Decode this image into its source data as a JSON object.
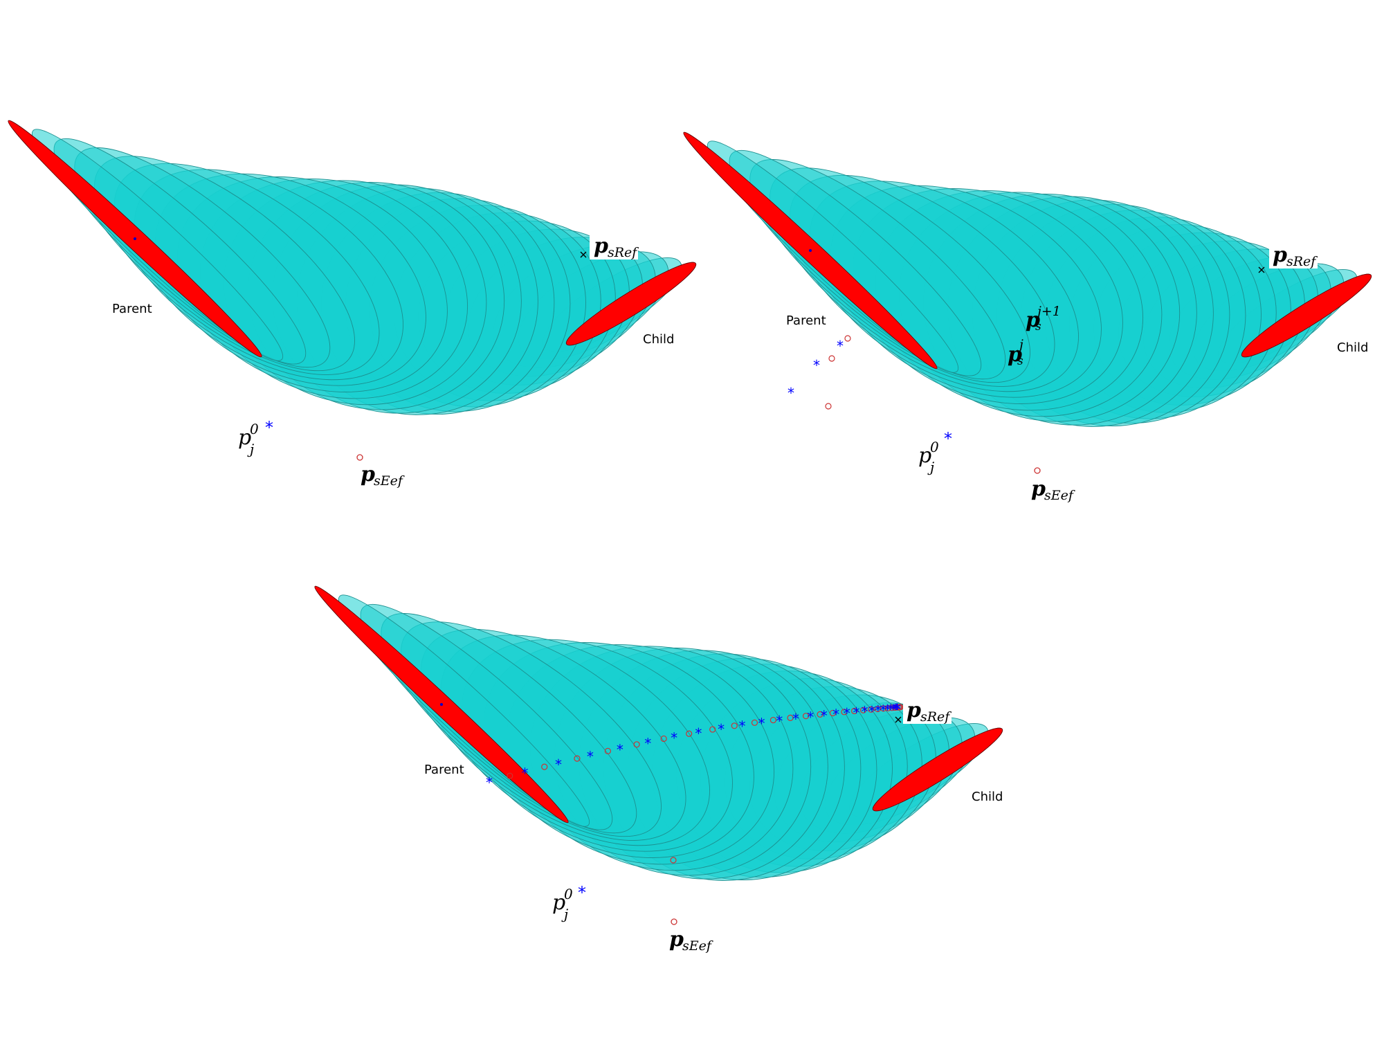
{
  "figure": {
    "panels": [
      {
        "id": "panel-a",
        "labels": {
          "parent": "Parent",
          "child": "Child"
        },
        "ref_point_label": {
          "base": "p",
          "sub": "sRef"
        },
        "eef_point_label": {
          "base": "p",
          "sub": "sEef"
        },
        "init_label": {
          "base": "p",
          "sup": "0",
          "sub": "j"
        },
        "show_iterations": "none"
      },
      {
        "id": "panel-b",
        "labels": {
          "parent": "Parent",
          "child": "Child"
        },
        "ref_point_label": {
          "base": "p",
          "sub": "sRef"
        },
        "eef_point_label": {
          "base": "p",
          "sub": "sEef"
        },
        "init_label": {
          "base": "p",
          "sup": "0",
          "sub": "j"
        },
        "iter_labels": [
          {
            "base": "p",
            "sub": "s",
            "sup": "j+1"
          },
          {
            "base": "p",
            "sub": "s",
            "sup": "j"
          }
        ],
        "show_iterations": "few"
      },
      {
        "id": "panel-c",
        "labels": {
          "parent": "Parent",
          "child": "Child"
        },
        "ref_point_label": {
          "base": "p",
          "sub": "sRef"
        },
        "eef_point_label": {
          "base": "p",
          "sub": "sEef"
        },
        "init_label": {
          "base": "p",
          "sup": "0",
          "sub": "j"
        },
        "show_iterations": "full"
      }
    ],
    "colors": {
      "ellipse_fill": "#17d0d0",
      "ellipse_stroke": "#1c8f8f",
      "end_ellipse_fill": "#ff0000",
      "iter_star": "#0000ff",
      "iter_circle": "#cc3333",
      "ref_marker": "#000000"
    },
    "icons": {
      "iterate_marker": "blue-asterisk",
      "projection_marker": "red-open-circle",
      "reference_marker": "black-cross"
    }
  }
}
